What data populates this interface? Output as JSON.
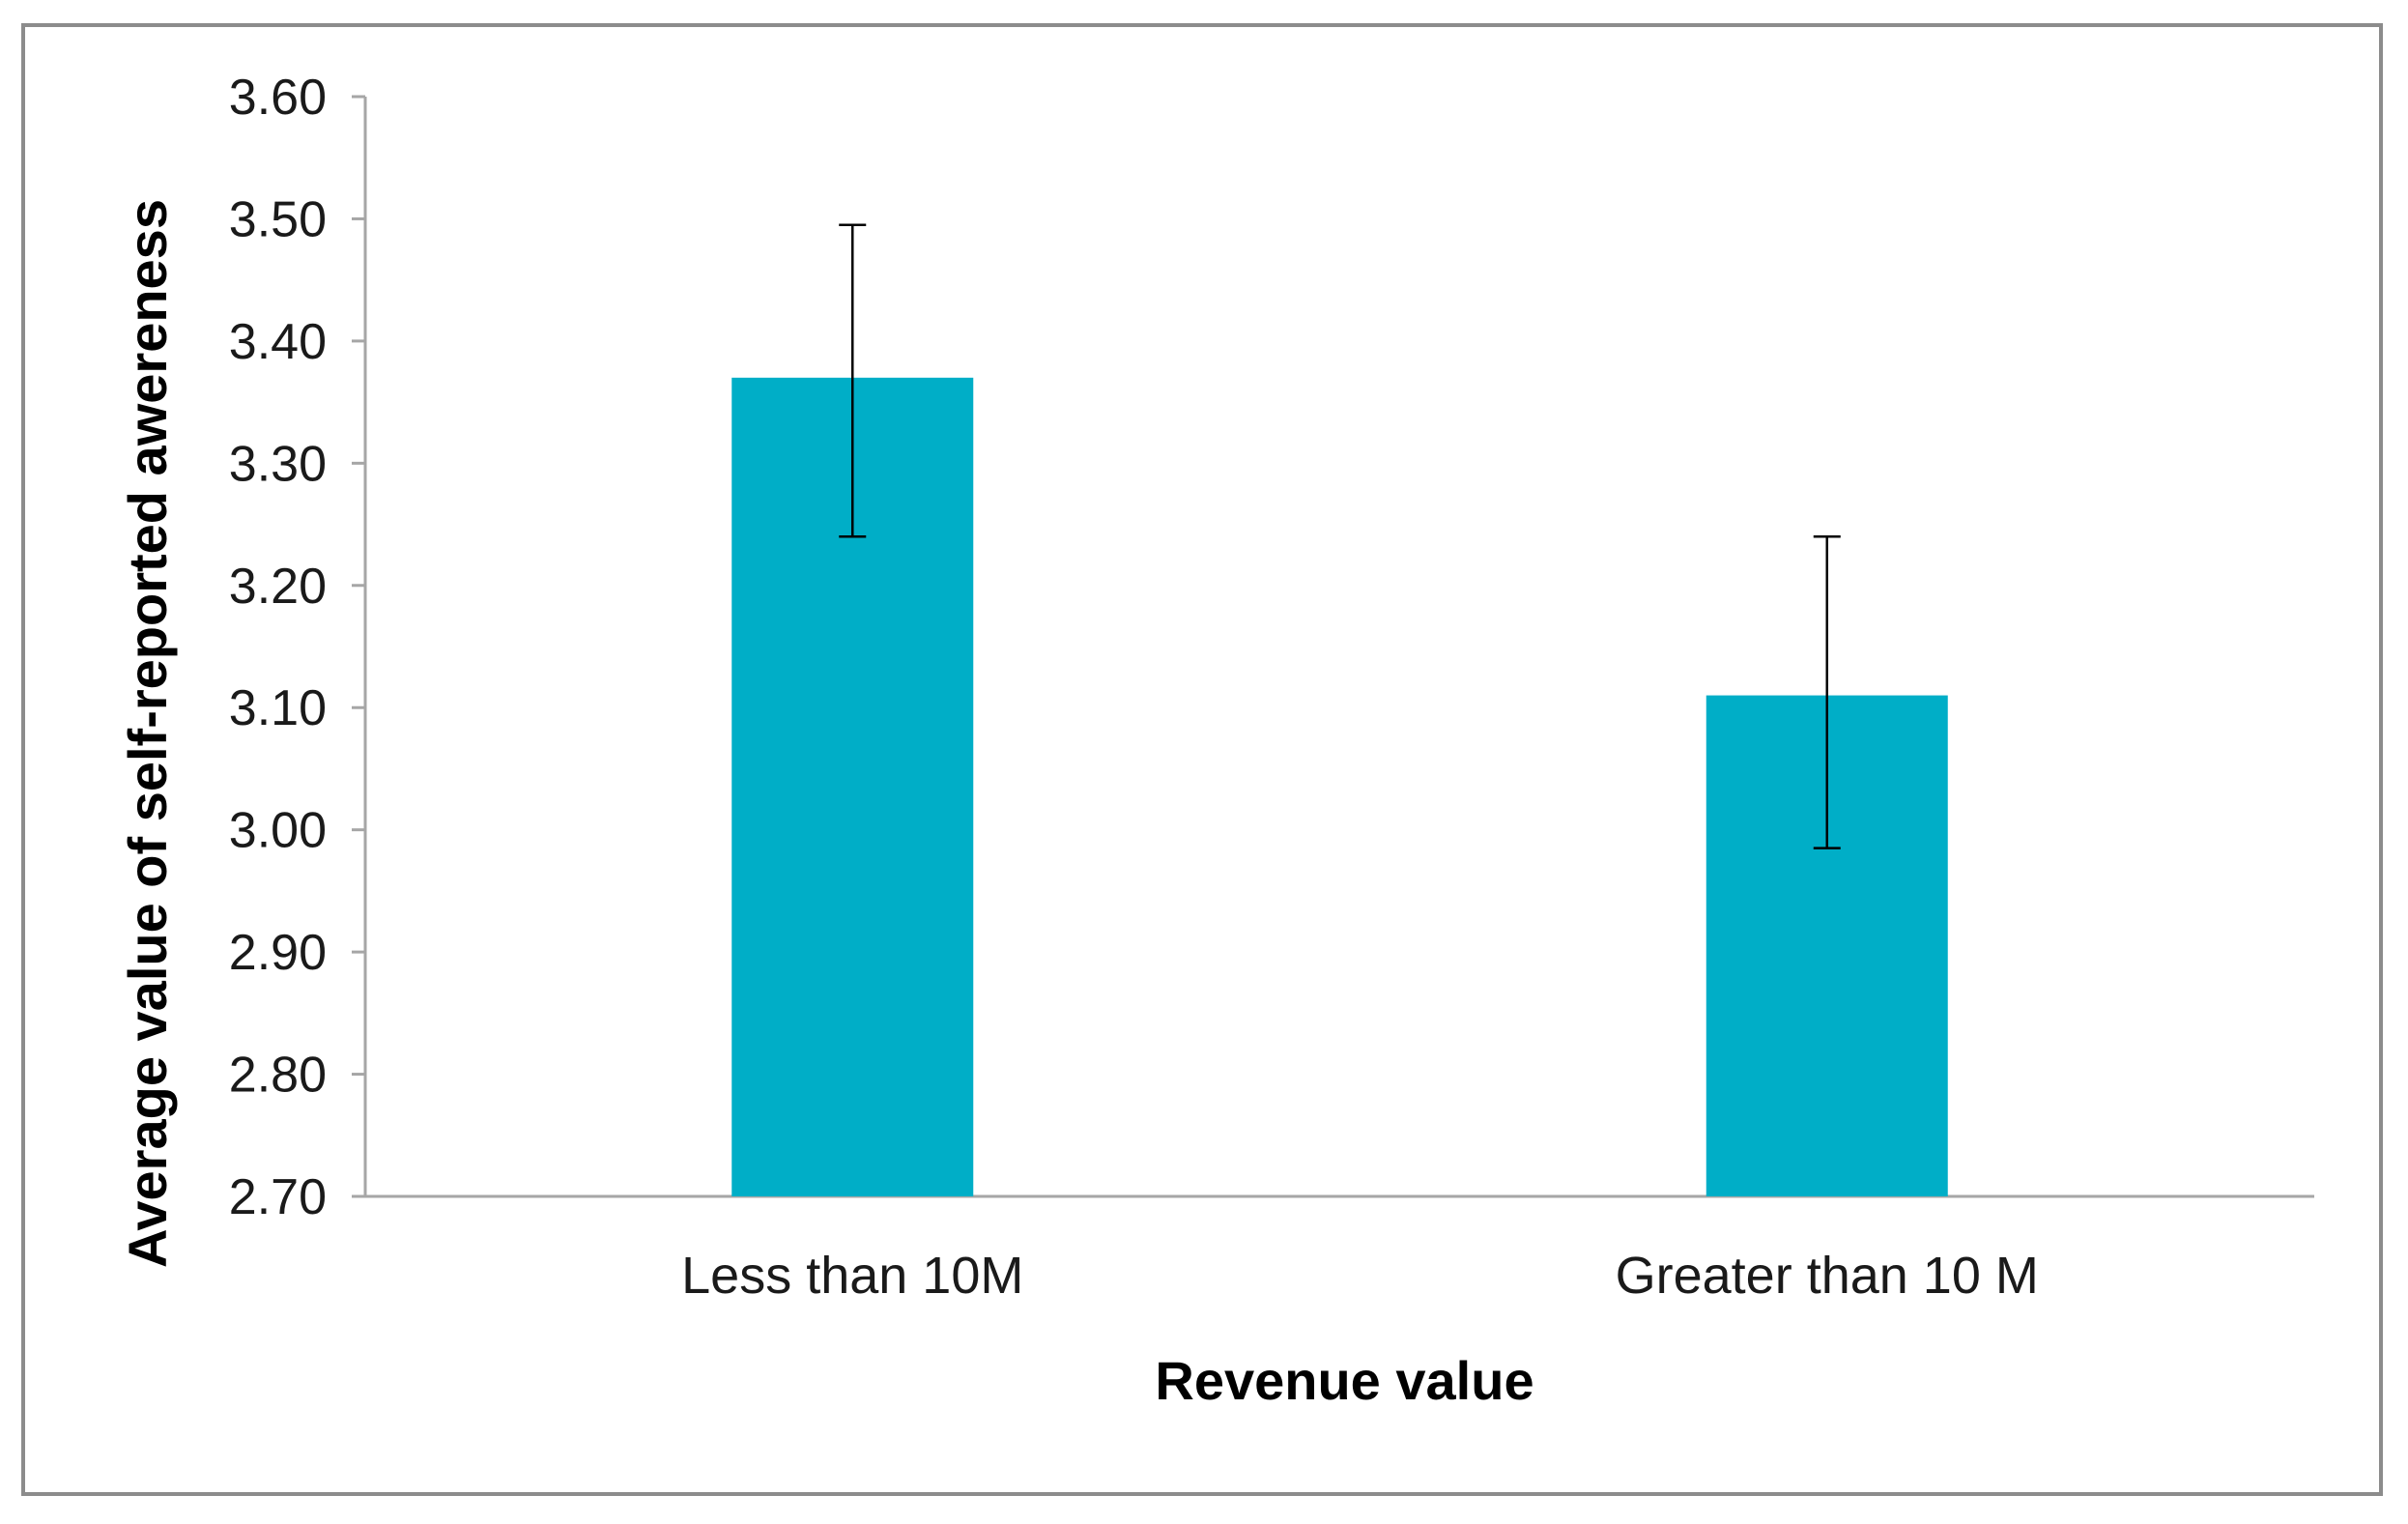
{
  "chart_data": {
    "type": "bar",
    "title": "",
    "xlabel": "Revenue value",
    "ylabel": "Average value of self-reported awereness",
    "categories": [
      "Less than 10M",
      "Greater than 10 M"
    ],
    "values": [
      3.37,
      3.11
    ],
    "error_bars": [
      {
        "low": 3.24,
        "high": 3.495
      },
      {
        "low": 2.985,
        "high": 3.24
      }
    ],
    "ylim": [
      2.7,
      3.6
    ],
    "yticks": [
      "2.70",
      "2.80",
      "2.90",
      "3.00",
      "3.10",
      "3.20",
      "3.30",
      "3.40",
      "3.50",
      "3.60"
    ],
    "bar_color": "#00AEC7",
    "grid": false,
    "legend": "none"
  }
}
